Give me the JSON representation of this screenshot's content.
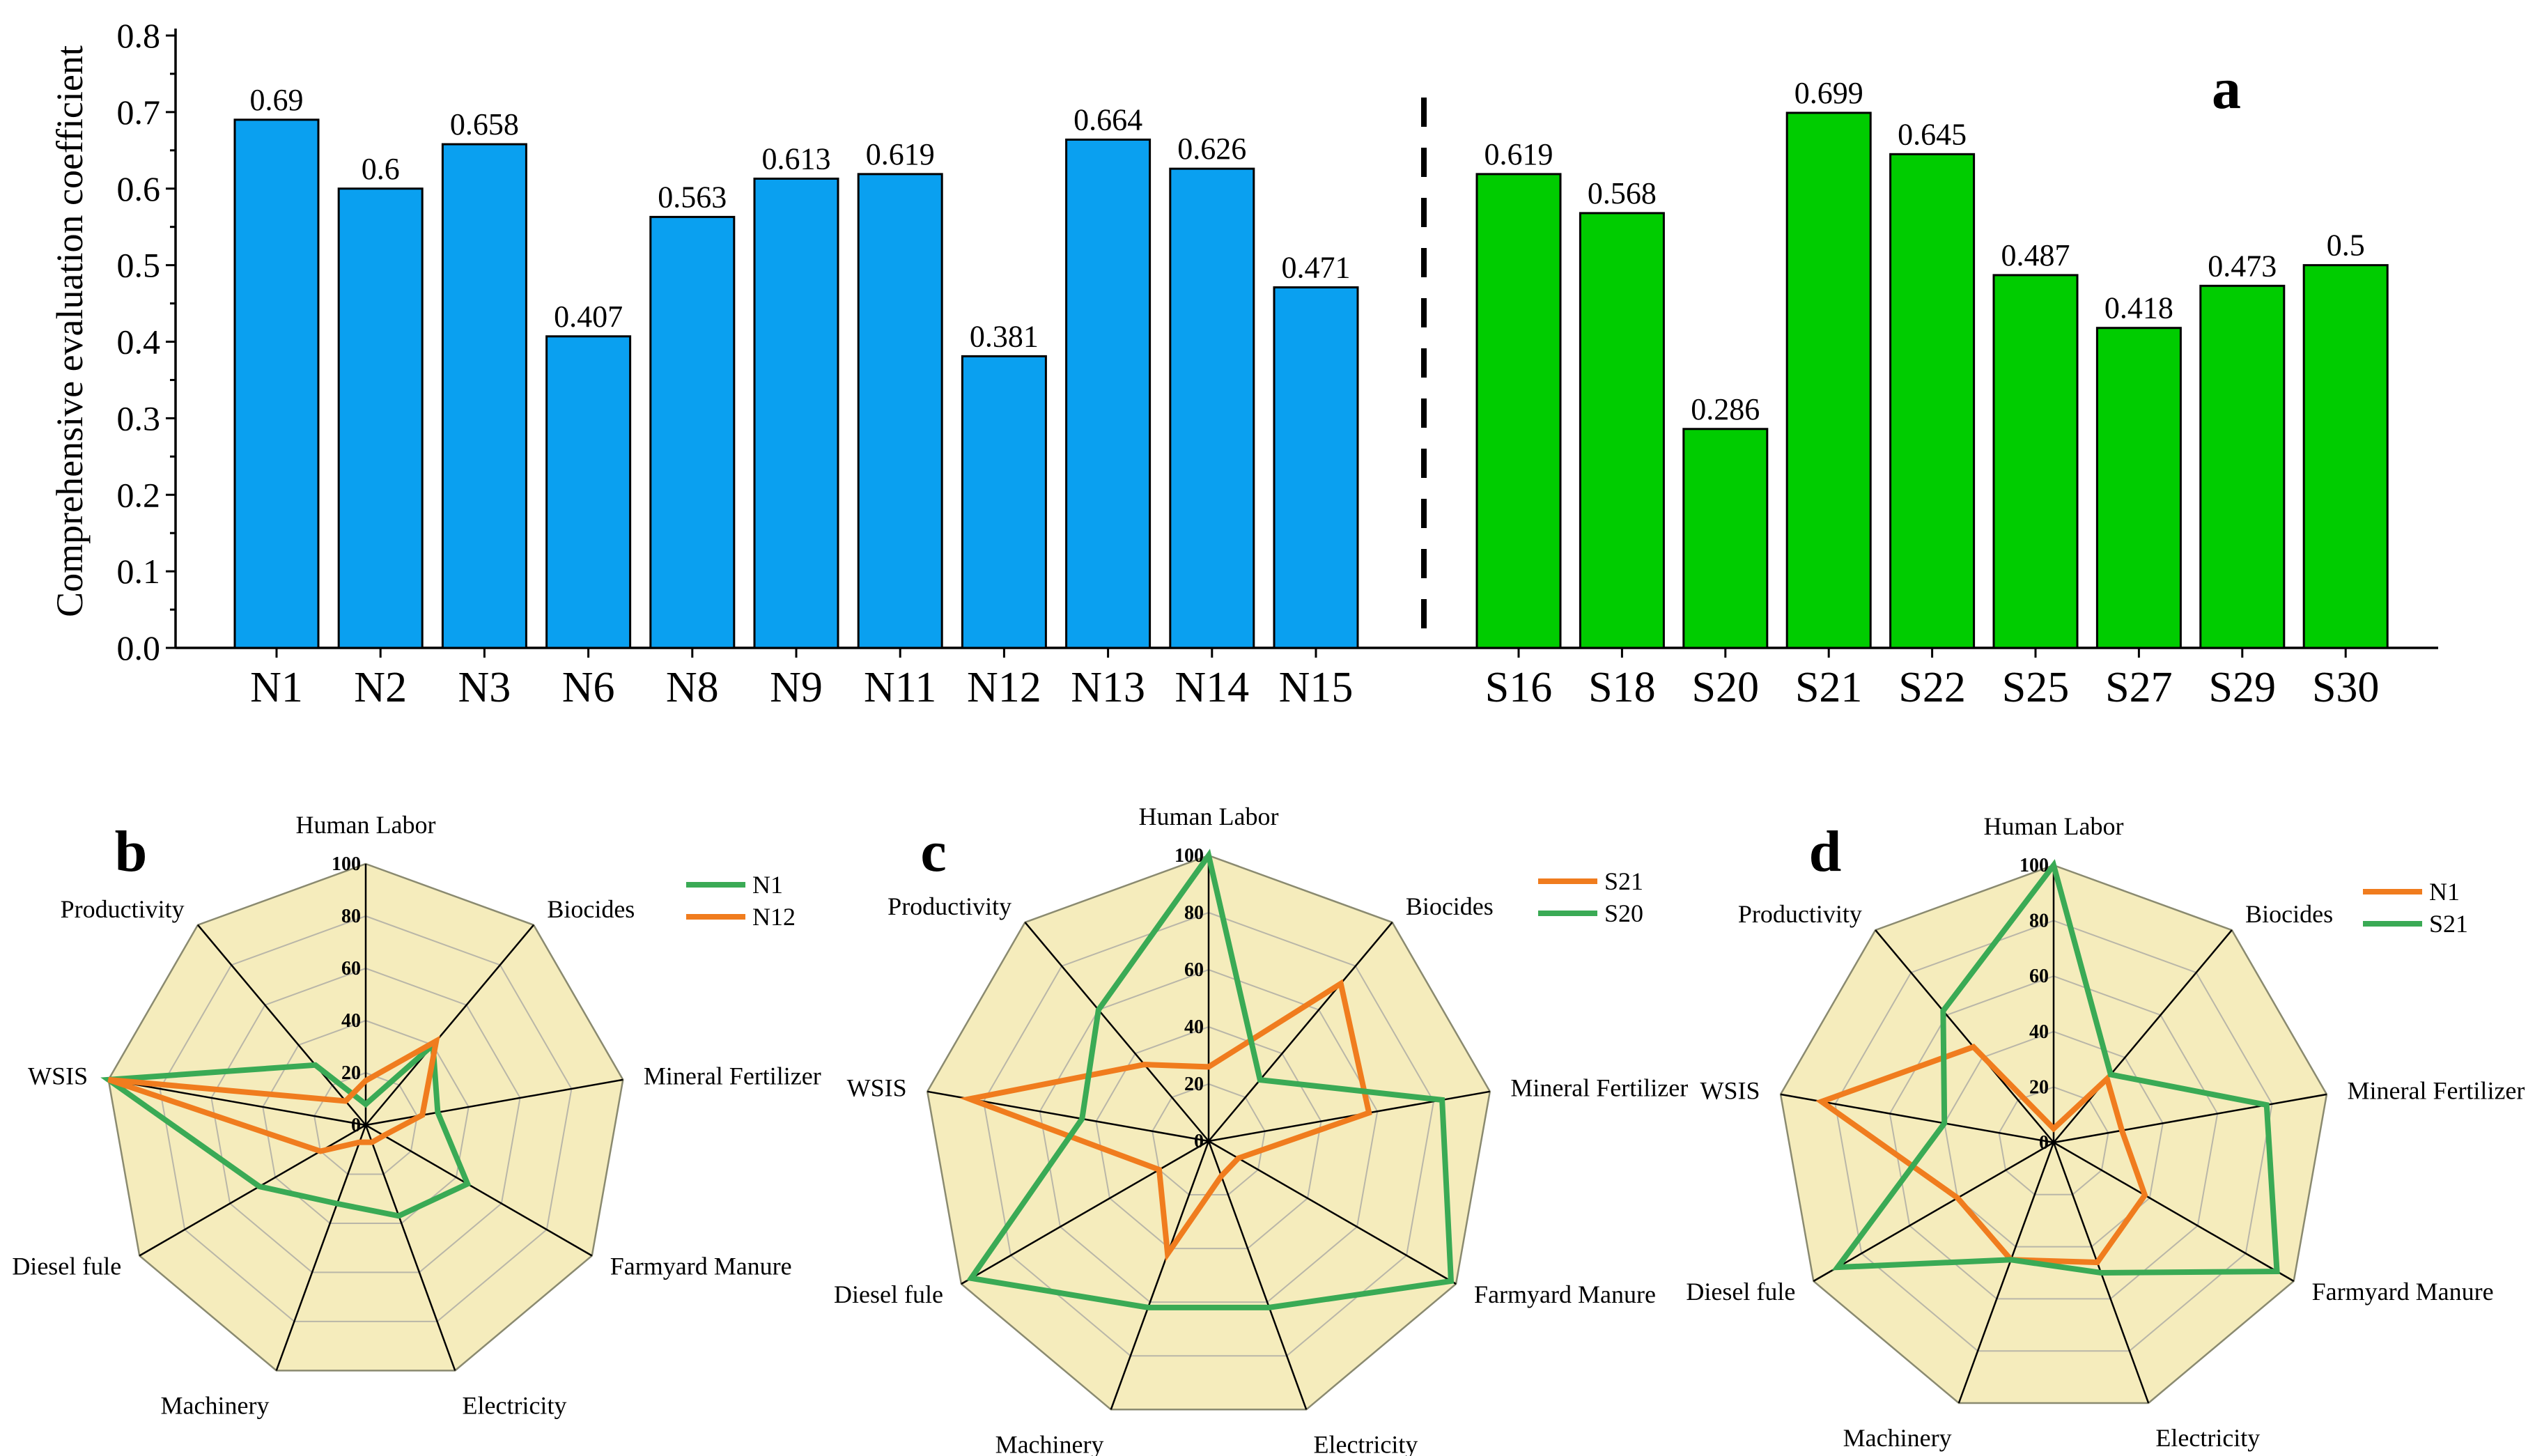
{
  "chart_data": [
    {
      "type": "bar",
      "panel_label": "a",
      "ylabel": "Comprehensive evaluation coefficient",
      "xlabel": "",
      "ylim": [
        0,
        0.8
      ],
      "yticks": [
        "0.0",
        "0.1",
        "0.2",
        "0.3",
        "0.4",
        "0.5",
        "0.6",
        "0.7",
        "0.8"
      ],
      "separator": "dashed line between N15 and S16",
      "groups": [
        {
          "name": "N",
          "color": "#0aa0f0",
          "categories": [
            "N1",
            "N2",
            "N3",
            "N6",
            "N8",
            "N9",
            "N11",
            "N12",
            "N13",
            "N14",
            "N15"
          ],
          "values": [
            0.69,
            0.6,
            0.658,
            0.407,
            0.563,
            0.613,
            0.619,
            0.381,
            0.664,
            0.626,
            0.471
          ],
          "value_labels": [
            "0.69",
            "0.6",
            "0.658",
            "0.407",
            "0.563",
            "0.613",
            "0.619",
            "0.381",
            "0.664",
            "0.626",
            "0.471"
          ]
        },
        {
          "name": "S",
          "color": "#00cc00",
          "categories": [
            "S16",
            "S18",
            "S20",
            "S21",
            "S22",
            "S25",
            "S27",
            "S29",
            "S30"
          ],
          "values": [
            0.619,
            0.568,
            0.286,
            0.699,
            0.645,
            0.487,
            0.418,
            0.473,
            0.5
          ],
          "value_labels": [
            "0.619",
            "0.568",
            "0.286",
            "0.699",
            "0.645",
            "0.487",
            "0.418",
            "0.473",
            "0.5"
          ]
        }
      ]
    },
    {
      "type": "radar",
      "panel_label": "b",
      "axes": [
        "Human Labor",
        "Biocides",
        "Mineral Fertilizer",
        "Farmyard Manure",
        "Electricity",
        "Machinery",
        "Diesel fule",
        "WSIS",
        "Productivity"
      ],
      "rlim": [
        0,
        100
      ],
      "rticks": [
        "0",
        "20",
        "40",
        "60",
        "80",
        "100"
      ],
      "fill_color": "#f5ecbc",
      "series": [
        {
          "name": "N1",
          "color": "#3aaa55",
          "values": [
            8,
            40,
            28,
            45,
            37,
            32,
            47,
            100,
            30
          ]
        },
        {
          "name": "N12",
          "color": "#f07c1e",
          "values": [
            17,
            42,
            22,
            8,
            7,
            7,
            20,
            100,
            12
          ]
        }
      ]
    },
    {
      "type": "radar",
      "panel_label": "c",
      "axes": [
        "Human Labor",
        "Biocides",
        "Mineral Fertilizer",
        "Farmyard Manure",
        "Electricity",
        "Machinery",
        "Diesel fule",
        "WSIS",
        "Productivity"
      ],
      "rlim": [
        0,
        100
      ],
      "rticks": [
        "0",
        "20",
        "40",
        "60",
        "80",
        "100"
      ],
      "fill_color": "#f5ecbc",
      "series": [
        {
          "name": "S21",
          "color": "#f07c1e",
          "values": [
            26,
            72,
            57,
            12,
            13,
            42,
            20,
            85,
            35
          ]
        },
        {
          "name": "S20",
          "color": "#3aaa55",
          "values": [
            100,
            28,
            83,
            98,
            62,
            62,
            96,
            45,
            60
          ]
        }
      ]
    },
    {
      "type": "radar",
      "panel_label": "d",
      "axes": [
        "Human Labor",
        "Biocides",
        "Mineral Fertilizer",
        "Farmyard Manure",
        "Electricity",
        "Machinery",
        "Diesel fule",
        "WSIS",
        "Productivity"
      ],
      "rlim": [
        0,
        100
      ],
      "rticks": [
        "0",
        "20",
        "40",
        "60",
        "80",
        "100"
      ],
      "fill_color": "#f5ecbc",
      "series": [
        {
          "name": "N1",
          "color": "#f07c1e",
          "values": [
            5,
            30,
            25,
            38,
            46,
            45,
            40,
            85,
            45
          ]
        },
        {
          "name": "S21",
          "color": "#3aaa55",
          "values": [
            100,
            32,
            78,
            93,
            50,
            45,
            90,
            40,
            62
          ]
        }
      ]
    }
  ]
}
